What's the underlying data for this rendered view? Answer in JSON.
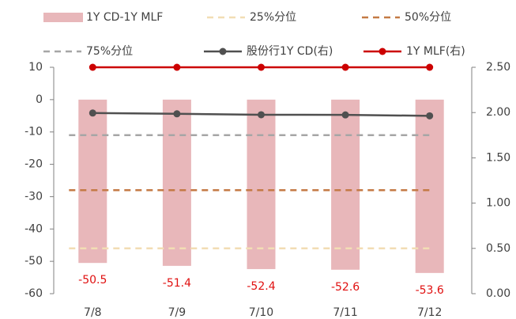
{
  "chart_data": {
    "type": "bar",
    "categories": [
      "7/8",
      "7/9",
      "7/10",
      "7/11",
      "7/12"
    ],
    "series": [
      {
        "name": "1Y CD-1Y MLF",
        "type": "bar",
        "color": "#e8b7ba",
        "values": [
          -50.5,
          -51.4,
          -52.4,
          -52.6,
          -53.6
        ],
        "label_color": "#e01010"
      },
      {
        "name": "25%分位",
        "type": "line",
        "style": "dashed",
        "color": "#f2ddb4",
        "values": [
          -46,
          -46,
          -46,
          -46,
          -46
        ]
      },
      {
        "name": "50%分位",
        "type": "line",
        "style": "dashed",
        "color": "#c47a45",
        "values": [
          -28,
          -28,
          -28,
          -28,
          -28
        ]
      },
      {
        "name": "75%分位",
        "type": "line",
        "style": "dashed",
        "color": "#a6a6a6",
        "values": [
          -11,
          -11,
          -11,
          -11,
          -11
        ]
      },
      {
        "name": "股份行1Y CD(右)",
        "type": "line",
        "style": "solid",
        "marker": true,
        "axis": "y2",
        "color": "#505050",
        "values": [
          1.995,
          1.986,
          1.976,
          1.974,
          1.964
        ]
      },
      {
        "name": "1Y MLF(右)",
        "type": "line",
        "style": "solid",
        "marker": true,
        "axis": "y2",
        "color": "#cc0000",
        "values": [
          2.5,
          2.5,
          2.5,
          2.5,
          2.5
        ]
      }
    ],
    "ylim": [
      -60,
      10
    ],
    "yticks": [
      10,
      0,
      -10,
      -20,
      -30,
      -40,
      -50,
      -60
    ],
    "y2lim": [
      0,
      2.5
    ],
    "y2ticks": [
      {
        "value": 2.5,
        "label": "2.50"
      },
      {
        "value": 2,
        "label": "2.00"
      },
      {
        "value": 1.5,
        "label": "1.50"
      },
      {
        "value": 1,
        "label": "1.00"
      },
      {
        "value": 0.5,
        "label": "0.50"
      },
      {
        "value": 0,
        "label": "0.00"
      }
    ],
    "grid": false
  }
}
